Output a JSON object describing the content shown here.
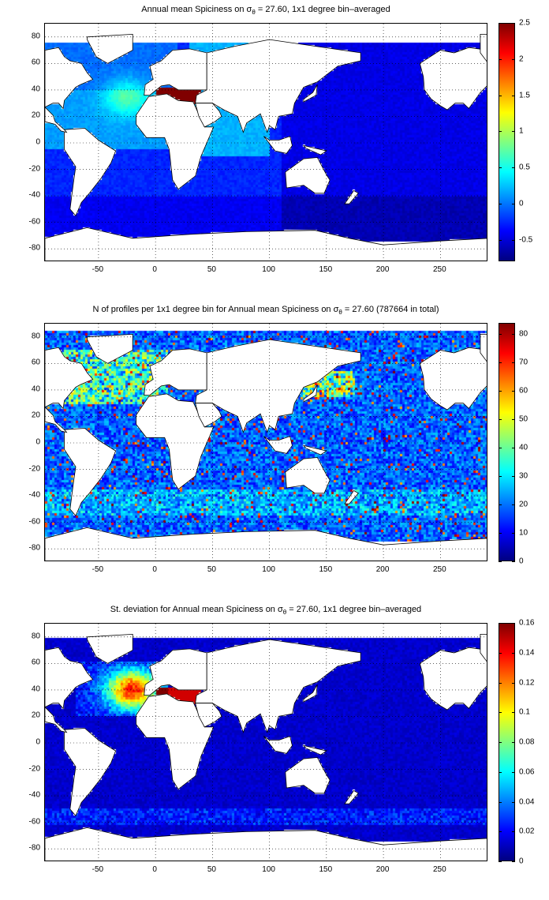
{
  "panels": [
    {
      "title_prefix": "Annual mean Spiciness on ",
      "title_sigma": "σ",
      "title_sub": "θ",
      "title_suffix": " = 27.60, 1x1 degree bin–averaged",
      "colorbar_ticks": [
        "2.5",
        "2",
        "1.5",
        "1",
        "0.5",
        "0",
        "-0.5"
      ],
      "colorbar_range": [
        -0.8,
        2.5
      ],
      "colormap": "jet"
    },
    {
      "title_prefix": "N of profiles per 1x1 degree bin for Annual mean Spiciness on ",
      "title_sigma": "σ",
      "title_sub": "θ",
      "title_suffix": " = 27.60 (787664 in total)",
      "colorbar_ticks": [
        "80",
        "70",
        "60",
        "50",
        "40",
        "30",
        "20",
        "10",
        "0"
      ],
      "colorbar_range": [
        0,
        84
      ],
      "colormap": "jet"
    },
    {
      "title_prefix": "St. deviation for Annual mean Spiciness on ",
      "title_sigma": "σ",
      "title_sub": "θ",
      "title_suffix": " = 27.60, 1x1 degree bin–averaged",
      "colorbar_ticks": [
        "0.16",
        "0.14",
        "0.12",
        "0.1",
        "0.08",
        "0.06",
        "0.04",
        "0.02",
        "0"
      ],
      "colorbar_range": [
        0,
        0.16
      ],
      "colormap": "jet"
    }
  ],
  "axes": {
    "y_ticks": [
      "80",
      "60",
      "40",
      "20",
      "0",
      "-20",
      "-40",
      "-60",
      "-80"
    ],
    "x_ticks": [
      "-50",
      "0",
      "50",
      "100",
      "150",
      "200",
      "250"
    ],
    "x_range": [
      -97,
      292
    ],
    "y_range": [
      -90,
      90
    ],
    "grid": "dotted"
  },
  "colors": {
    "land": "#ffffff",
    "coast": "#000000"
  }
}
